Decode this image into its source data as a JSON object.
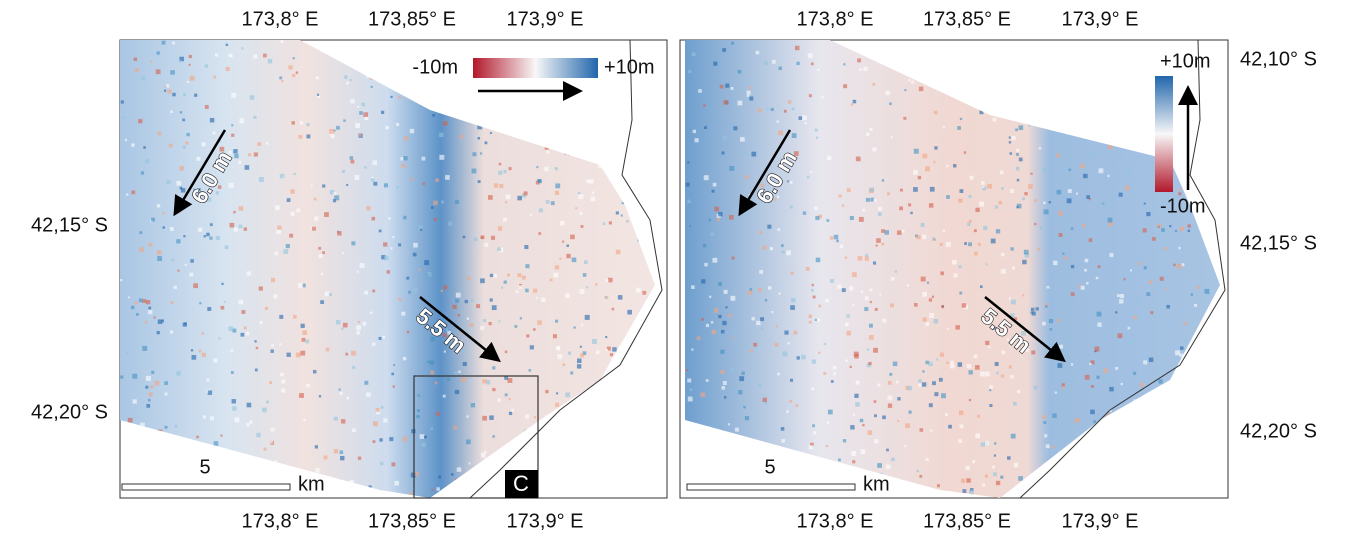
{
  "panels": [
    {
      "top_ticks": [
        "173,8° E",
        "173,85° E",
        "173,9° E"
      ],
      "bottom_ticks": [
        "173,8° E",
        "173,85° E",
        "173,9° E"
      ],
      "lat_ticks": [
        "42,15° S",
        "42,20° S"
      ],
      "colorbar": {
        "min_label": "-10m",
        "max_label": "+10m"
      },
      "arrows": [
        "6.0 m",
        "5.5 m"
      ],
      "scale": {
        "value": "5",
        "unit": "km"
      },
      "inset_label": "C"
    },
    {
      "top_ticks": [
        "173,8° E",
        "173,85° E",
        "173,9° E"
      ],
      "bottom_ticks": [
        "173,8° E",
        "173,85° E",
        "173,9° E"
      ],
      "lat_ticks": [
        "42,10° S",
        "42,15° S",
        "42,20° S"
      ],
      "colorbar": {
        "min_label": "-10m",
        "max_label": "+10m"
      },
      "arrows": [
        "6.0 m",
        "5.5 m"
      ],
      "scale": {
        "value": "5",
        "unit": "km"
      }
    }
  ]
}
